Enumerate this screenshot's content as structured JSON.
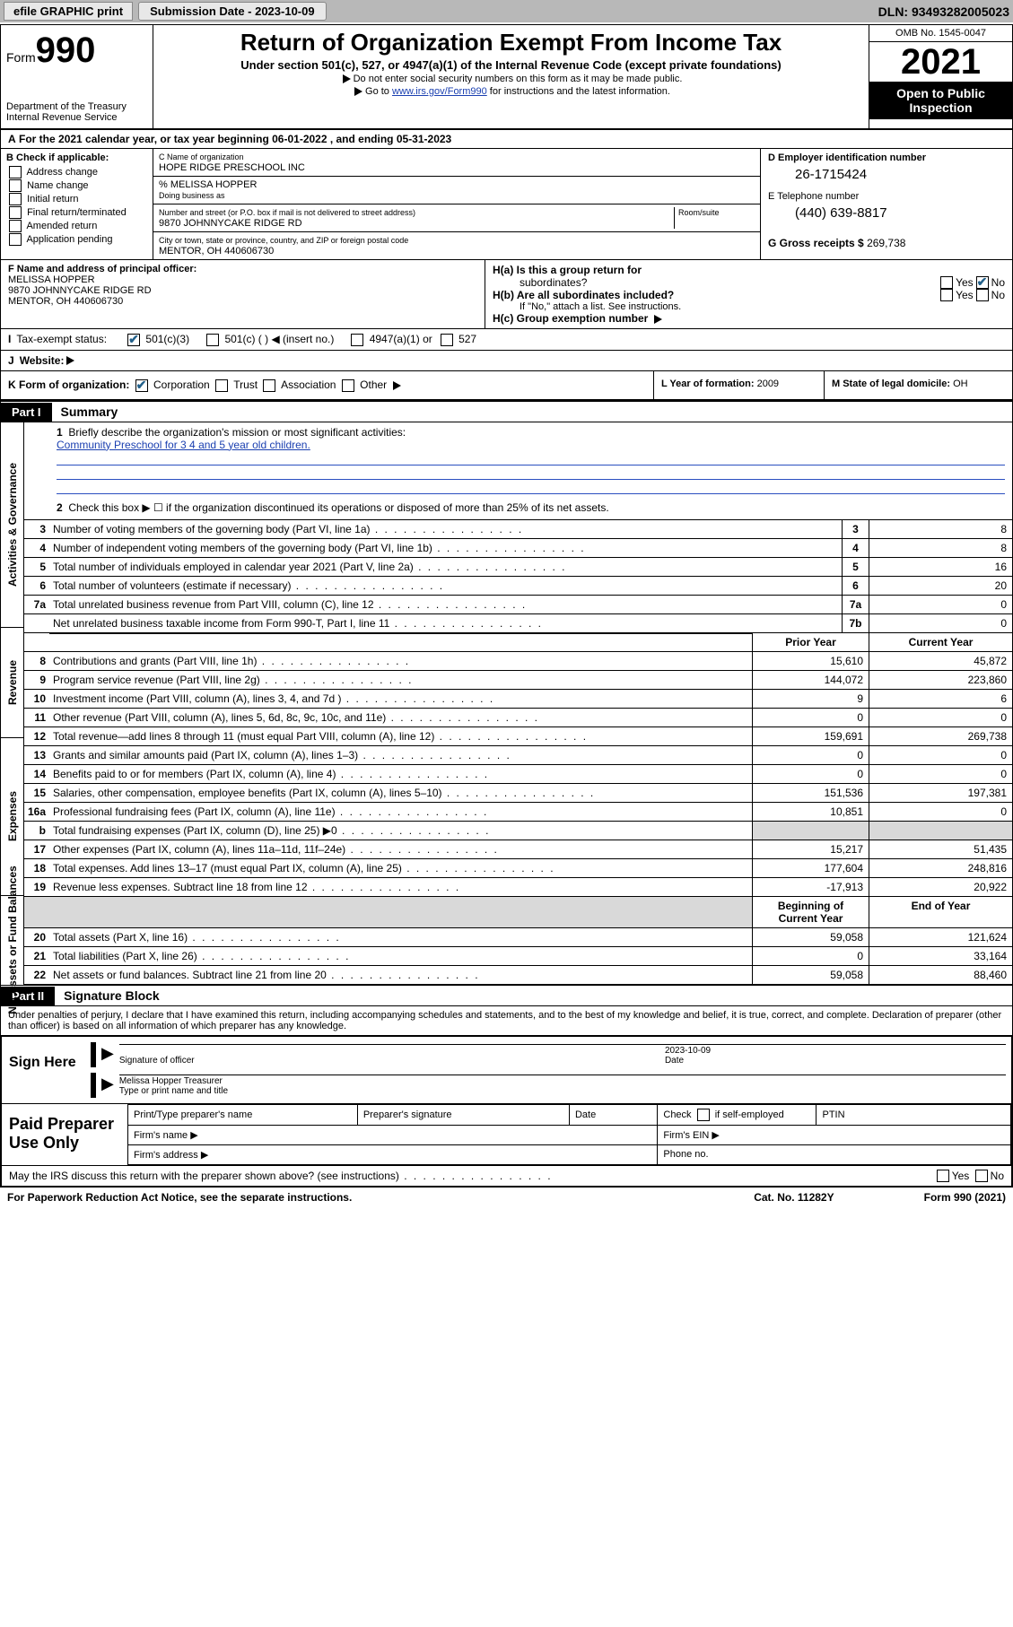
{
  "topbar": {
    "efile": "efile GRAPHIC print",
    "submission_label": "Submission Date - 2023-10-09",
    "dln": "DLN: 93493282005023"
  },
  "header": {
    "form_word": "Form",
    "form_num": "990",
    "dept": "Department of the Treasury",
    "irs": "Internal Revenue Service",
    "title": "Return of Organization Exempt From Income Tax",
    "sub": "Under section 501(c), 527, or 4947(a)(1) of the Internal Revenue Code (except private foundations)",
    "note1": "Do not enter social security numbers on this form as it may be made public.",
    "note2_pre": "Go to ",
    "note2_link": "www.irs.gov/Form990",
    "note2_post": " for instructions and the latest information.",
    "omb": "OMB No. 1545-0047",
    "year": "2021",
    "inspect1": "Open to Public",
    "inspect2": "Inspection"
  },
  "period": {
    "text": "For the 2021 calendar year, or tax year beginning 06-01-2022    , and ending 05-31-2023",
    "prefix": "A"
  },
  "colB": {
    "title": "B Check if applicable:",
    "items": [
      "Address change",
      "Name change",
      "Initial return",
      "Final return/terminated",
      "Amended return",
      "Application pending"
    ]
  },
  "colC": {
    "name_lbl": "C Name of organization",
    "name": "HOPE RIDGE PRESCHOOL INC",
    "care_of": "% MELISSA HOPPER",
    "dba_lbl": "Doing business as",
    "addr_lbl": "Number and street (or P.O. box if mail is not delivered to street address)",
    "room_lbl": "Room/suite",
    "addr": "9870 JOHNNYCAKE RIDGE RD",
    "city_lbl": "City or town, state or province, country, and ZIP or foreign postal code",
    "city": "MENTOR, OH  440606730"
  },
  "colD": {
    "d_lbl": "D Employer identification number",
    "d_val": "26-1715424",
    "e_lbl": "E Telephone number",
    "e_val": "(440) 639-8817",
    "g_lbl": "G Gross receipts $",
    "g_val": "269,738"
  },
  "rowF": {
    "lbl": "F Name and address of principal officer:",
    "name": "MELISSA HOPPER",
    "addr1": "9870 JOHNNYCAKE RIDGE RD",
    "addr2": "MENTOR, OH  440606730"
  },
  "rowH": {
    "ha": "H(a)  Is this a group return for",
    "ha2": "subordinates?",
    "hb": "H(b)  Are all subordinates included?",
    "hnote": "If \"No,\" attach a list. See instructions.",
    "hc": "H(c)  Group exemption number",
    "yes": "Yes",
    "no": "No"
  },
  "rowI": {
    "lbl": "Tax-exempt status:",
    "opts": [
      "501(c)(3)",
      "501(c) (  )  ◀ (insert no.)",
      "4947(a)(1) or",
      "527"
    ]
  },
  "rowJ": {
    "lbl": "Website:"
  },
  "rowK": {
    "lbl": "K Form of organization:",
    "opts": [
      "Corporation",
      "Trust",
      "Association",
      "Other"
    ],
    "l_lbl": "L Year of formation:",
    "l_val": "2009",
    "m_lbl": "M State of legal domicile:",
    "m_val": "OH"
  },
  "part1": {
    "hdr": "Part I",
    "title": "Summary"
  },
  "mission": {
    "q": "Briefly describe the organization's mission or most significant activities:",
    "a": "Community Preschool for 3 4 and 5 year old children."
  },
  "line2": "Check this box ▶ ☐  if the organization discontinued its operations or disposed of more than 25% of its net assets.",
  "sidelabels": {
    "gov": "Activities & Governance",
    "rev": "Revenue",
    "exp": "Expenses",
    "net": "Net Assets or Fund Balances"
  },
  "hdr_cols": {
    "prior": "Prior Year",
    "current": "Current Year",
    "boy": "Beginning of Current Year",
    "eoy": "End of Year"
  },
  "gov_lines": [
    {
      "n": "3",
      "d": "Number of voting members of the governing body (Part VI, line 1a)",
      "c": "3",
      "v": "8"
    },
    {
      "n": "4",
      "d": "Number of independent voting members of the governing body (Part VI, line 1b)",
      "c": "4",
      "v": "8"
    },
    {
      "n": "5",
      "d": "Total number of individuals employed in calendar year 2021 (Part V, line 2a)",
      "c": "5",
      "v": "16"
    },
    {
      "n": "6",
      "d": "Total number of volunteers (estimate if necessary)",
      "c": "6",
      "v": "20"
    },
    {
      "n": "7a",
      "d": "Total unrelated business revenue from Part VIII, column (C), line 12",
      "c": "7a",
      "v": "0"
    },
    {
      "n": "",
      "d": "Net unrelated business taxable income from Form 990-T, Part I, line 11",
      "c": "7b",
      "v": "0"
    }
  ],
  "rev_lines": [
    {
      "n": "8",
      "d": "Contributions and grants (Part VIII, line 1h)",
      "p": "15,610",
      "c": "45,872"
    },
    {
      "n": "9",
      "d": "Program service revenue (Part VIII, line 2g)",
      "p": "144,072",
      "c": "223,860"
    },
    {
      "n": "10",
      "d": "Investment income (Part VIII, column (A), lines 3, 4, and 7d )",
      "p": "9",
      "c": "6"
    },
    {
      "n": "11",
      "d": "Other revenue (Part VIII, column (A), lines 5, 6d, 8c, 9c, 10c, and 11e)",
      "p": "0",
      "c": "0"
    },
    {
      "n": "12",
      "d": "Total revenue—add lines 8 through 11 (must equal Part VIII, column (A), line 12)",
      "p": "159,691",
      "c": "269,738"
    }
  ],
  "exp_lines": [
    {
      "n": "13",
      "d": "Grants and similar amounts paid (Part IX, column (A), lines 1–3)",
      "p": "0",
      "c": "0"
    },
    {
      "n": "14",
      "d": "Benefits paid to or for members (Part IX, column (A), line 4)",
      "p": "0",
      "c": "0"
    },
    {
      "n": "15",
      "d": "Salaries, other compensation, employee benefits (Part IX, column (A), lines 5–10)",
      "p": "151,536",
      "c": "197,381"
    },
    {
      "n": "16a",
      "d": "Professional fundraising fees (Part IX, column (A), line 11e)",
      "p": "10,851",
      "c": "0"
    },
    {
      "n": "b",
      "d": "Total fundraising expenses (Part IX, column (D), line 25) ▶0",
      "p": "",
      "c": "",
      "grey": true
    },
    {
      "n": "17",
      "d": "Other expenses (Part IX, column (A), lines 11a–11d, 11f–24e)",
      "p": "15,217",
      "c": "51,435"
    },
    {
      "n": "18",
      "d": "Total expenses. Add lines 13–17 (must equal Part IX, column (A), line 25)",
      "p": "177,604",
      "c": "248,816"
    },
    {
      "n": "19",
      "d": "Revenue less expenses. Subtract line 18 from line 12",
      "p": "-17,913",
      "c": "20,922"
    }
  ],
  "net_lines": [
    {
      "n": "20",
      "d": "Total assets (Part X, line 16)",
      "p": "59,058",
      "c": "121,624"
    },
    {
      "n": "21",
      "d": "Total liabilities (Part X, line 26)",
      "p": "0",
      "c": "33,164"
    },
    {
      "n": "22",
      "d": "Net assets or fund balances. Subtract line 21 from line 20",
      "p": "59,058",
      "c": "88,460"
    }
  ],
  "part2": {
    "hdr": "Part II",
    "title": "Signature Block"
  },
  "perjury": "Under penalties of perjury, I declare that I have examined this return, including accompanying schedules and statements, and to the best of my knowledge and belief, it is true, correct, and complete. Declaration of preparer (other than officer) is based on all information of which preparer has any knowledge.",
  "sign": {
    "here": "Sign Here",
    "sig_lbl": "Signature of officer",
    "date_lbl": "Date",
    "date": "2023-10-09",
    "name": "Melissa Hopper Treasurer",
    "name_lbl": "Type or print name and title"
  },
  "paid": {
    "title": "Paid Preparer Use Only",
    "h1": "Print/Type preparer's name",
    "h2": "Preparer's signature",
    "h3": "Date",
    "h4_pre": "Check",
    "h4_post": "if self-employed",
    "h5": "PTIN",
    "firm_name": "Firm's name    ▶",
    "firm_ein": "Firm's EIN ▶",
    "firm_addr": "Firm's address ▶",
    "phone": "Phone no."
  },
  "footer": {
    "discuss": "May the IRS discuss this return with the preparer shown above? (see instructions)",
    "paperwork": "For Paperwork Reduction Act Notice, see the separate instructions.",
    "cat": "Cat. No. 11282Y",
    "form": "Form 990 (2021)"
  }
}
